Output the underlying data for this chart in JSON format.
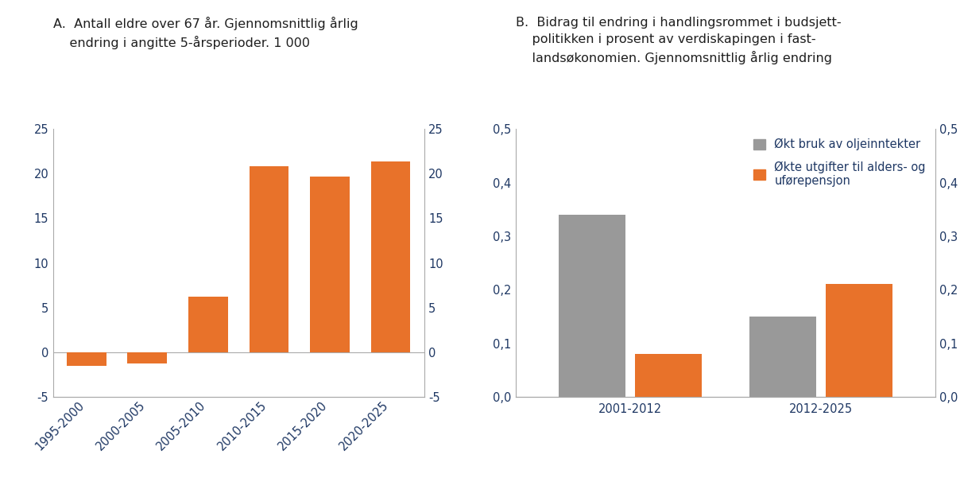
{
  "chart_a": {
    "title_line1": "A.  Antall eldre over 67 år. Gjennomsnittlig årlig",
    "title_line2": "    endring i angitte 5-årsperioder. 1 000",
    "categories": [
      "1995-2000",
      "2000-2005",
      "2005-2010",
      "2010-2015",
      "2015-2020",
      "2020-2025"
    ],
    "values": [
      -1.5,
      -1.3,
      6.2,
      20.8,
      19.7,
      21.4
    ],
    "bar_color": "#E8722A",
    "ylim": [
      -5,
      25
    ],
    "yticks": [
      -5,
      0,
      5,
      10,
      15,
      20,
      25
    ]
  },
  "chart_b": {
    "title_line1": "B.  Bidrag til endring i handlingsrommet i budsjett-",
    "title_line2": "    politikken i prosent av verdiskapingen i fast-",
    "title_line3": "    landsøkonomien. Gjennomsnittlig årlig endring",
    "categories": [
      "2001-2012",
      "2012-2025"
    ],
    "series1_label": "Økt bruk av oljeinntekter",
    "series2_label": "Økte utgifter til alders- og\nuførepensjon",
    "series1_values": [
      0.34,
      0.15
    ],
    "series2_values": [
      0.08,
      0.21
    ],
    "bar_color_gray": "#999999",
    "bar_color_orange": "#E8722A",
    "ylim": [
      0.0,
      0.5
    ],
    "yticks": [
      0.0,
      0.1,
      0.2,
      0.3,
      0.4,
      0.5
    ]
  },
  "background_color": "#FFFFFF",
  "spine_color": "#AAAAAA",
  "tick_label_color": "#1F3864",
  "title_color": "#1F1F1F",
  "title_fontsize": 11.5,
  "tick_fontsize": 10.5,
  "legend_fontsize": 10.5
}
